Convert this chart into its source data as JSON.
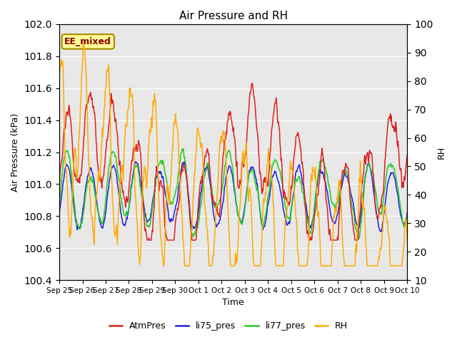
{
  "title": "Air Pressure and RH",
  "xlabel": "Time",
  "ylabel_left": "Air Pressure (kPa)",
  "ylabel_right": "RH",
  "ylim_left": [
    100.4,
    102.0
  ],
  "ylim_right": [
    10,
    100
  ],
  "annotation_text": "EE_mixed",
  "background_color": "#e8e8e8",
  "fig_background": "#ffffff",
  "line_colors": {
    "AtmPres": "#dd2020",
    "li75_pres": "#2020dd",
    "li77_pres": "#20cc20",
    "RH": "#ffaa00"
  },
  "line_widths": {
    "AtmPres": 1.1,
    "li75_pres": 1.1,
    "li77_pres": 1.1,
    "RH": 1.1
  },
  "x_tick_labels": [
    "Sep 25",
    "Sep 26",
    "Sep 27",
    "Sep 28",
    "Sep 29",
    "Sep 30",
    "Oct 1",
    "Oct 2",
    "Oct 3",
    "Oct 4",
    "Oct 5",
    "Oct 6",
    "Oct 7",
    "Oct 8",
    "Oct 9",
    "Oct 10"
  ],
  "yticks_left": [
    100.4,
    100.6,
    100.8,
    101.0,
    101.2,
    101.4,
    101.6,
    101.8,
    102.0
  ],
  "yticks_right": [
    10,
    20,
    30,
    40,
    50,
    60,
    70,
    80,
    90,
    100
  ],
  "legend_entries": [
    "AtmPres",
    "li75_pres",
    "li77_pres",
    "RH"
  ],
  "n_points": 720
}
